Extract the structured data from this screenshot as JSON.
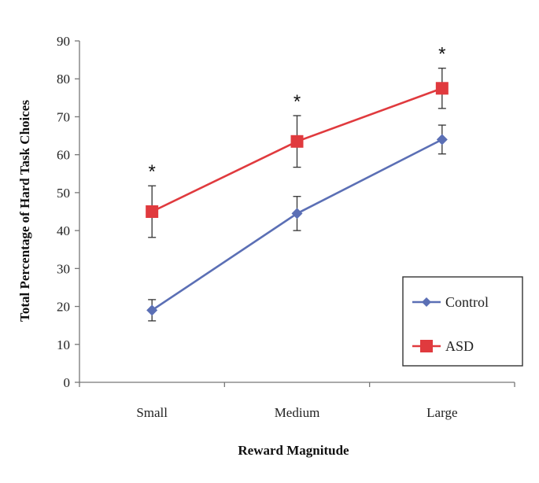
{
  "chart_data": {
    "type": "line",
    "xlabel": "Reward Magnitude",
    "ylabel": "Total Percentage of Hard Task Choices",
    "categories": [
      "Small",
      "Medium",
      "Large"
    ],
    "ylim": [
      0,
      90
    ],
    "yticks": [
      "0",
      "10",
      "20",
      "30",
      "40",
      "50",
      "60",
      "70",
      "80",
      "90"
    ],
    "grid": false,
    "legend_position": "bottom-right",
    "significance_markers": [
      "*",
      "*",
      "*"
    ],
    "series": [
      {
        "name": "Control",
        "color": "#5b6fb5",
        "marker": "diamond",
        "values": [
          19,
          44.5,
          64
        ],
        "error": [
          2.8,
          4.5,
          3.8
        ]
      },
      {
        "name": "ASD",
        "color": "#e03a3e",
        "marker": "square",
        "values": [
          45,
          63.5,
          77.5
        ],
        "error": [
          6.8,
          6.8,
          5.3
        ]
      }
    ]
  }
}
